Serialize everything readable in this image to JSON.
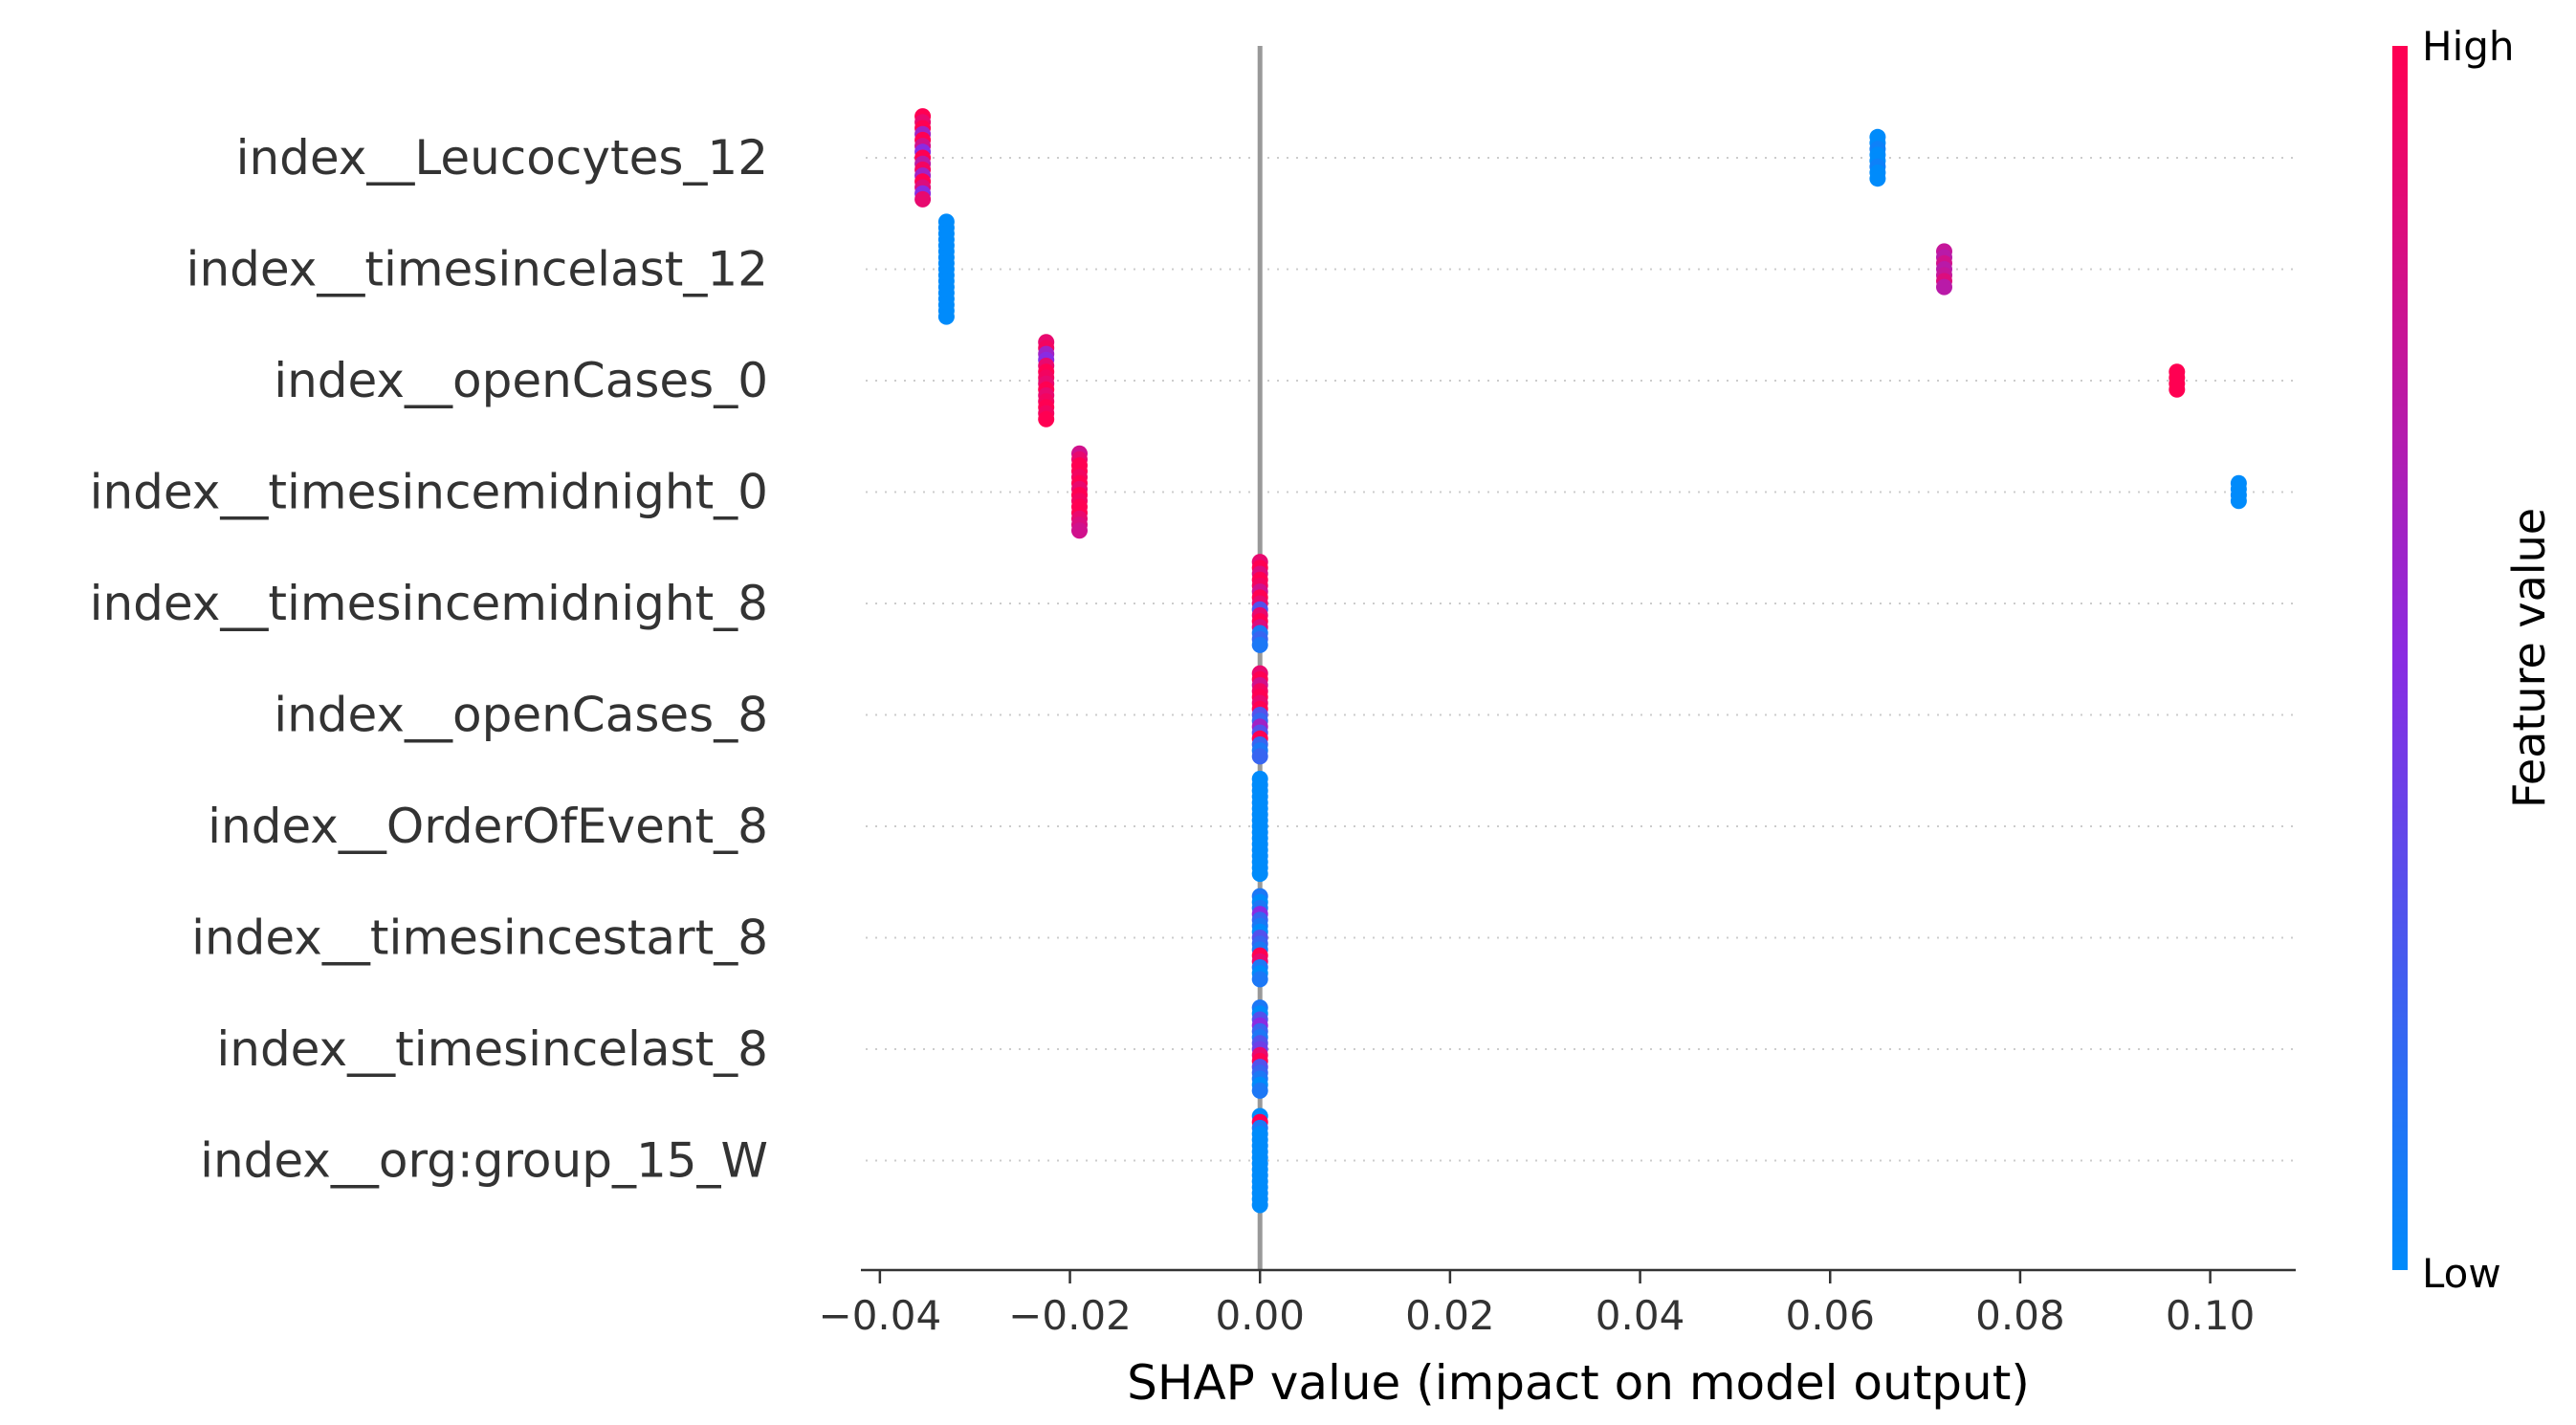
{
  "chart_data": {
    "type": "scatter",
    "subtype": "shap_beeswarm",
    "xlabel": "SHAP value (impact on model output)",
    "xlim": [
      -0.042,
      0.109
    ],
    "xticks": [
      -0.04,
      -0.02,
      0.0,
      0.02,
      0.04,
      0.06,
      0.08,
      0.1
    ],
    "xtick_labels": [
      "−0.04",
      "−0.02",
      "0.00",
      "0.02",
      "0.04",
      "0.06",
      "0.08",
      "0.10"
    ],
    "colorbar": {
      "title": "Feature value",
      "high_label": "High",
      "low_label": "Low",
      "low_color": "#008bfb",
      "mid_color": "#8a2be2",
      "high_color": "#ff0052"
    },
    "zero_line_color": "#999999",
    "features": [
      {
        "name": "index__Leucocytes_12",
        "clusters": [
          {
            "x": -0.0355,
            "color_values": [
              1,
              0.9,
              1,
              0.6,
              1,
              0.8,
              0.5,
              1,
              0.7,
              0.95,
              0.6,
              1,
              0.85,
              0.5,
              0.9
            ]
          },
          {
            "x": 0.065,
            "color_values": [
              0,
              0,
              0.05,
              0,
              0,
              0.05,
              0,
              0
            ]
          }
        ]
      },
      {
        "name": "index__timesincelast_12",
        "clusters": [
          {
            "x": -0.033,
            "color_values": [
              0,
              0,
              0,
              0,
              0,
              0,
              0,
              0,
              0,
              0,
              0,
              0,
              0,
              0,
              0,
              0,
              0
            ]
          },
          {
            "x": 0.072,
            "color_values": [
              0.75,
              0.7,
              0.8,
              0.7,
              0.75,
              0.85,
              0.7
            ]
          }
        ]
      },
      {
        "name": "index__openCases_0",
        "clusters": [
          {
            "x": -0.0225,
            "color_values": [
              0.9,
              0.95,
              0.6,
              0.5,
              0.9,
              1,
              0.95,
              0.9,
              1,
              0.9,
              0.95,
              1,
              0.95,
              1
            ]
          },
          {
            "x": 0.0965,
            "color_values": [
              1,
              1,
              1,
              1
            ]
          }
        ]
      },
      {
        "name": "index__timesincemidnight_0",
        "clusters": [
          {
            "x": -0.019,
            "color_values": [
              0.8,
              0.9,
              1,
              1,
              0.95,
              1,
              0.9,
              1,
              0.95,
              1,
              1,
              0.9,
              0.85,
              0.8
            ]
          },
          {
            "x": 0.103,
            "color_values": [
              0,
              0,
              0,
              0
            ]
          }
        ]
      },
      {
        "name": "index__timesincemidnight_8",
        "clusters": [
          {
            "x": 0.0,
            "color_values": [
              0.9,
              1,
              0.85,
              1,
              0.95,
              0.8,
              1,
              0.9,
              0.3,
              0.9,
              1,
              0.85,
              0.1,
              0.2,
              0.1
            ]
          }
        ]
      },
      {
        "name": "index__openCases_8",
        "clusters": [
          {
            "x": 0.0,
            "color_values": [
              0.9,
              1,
              0.8,
              0.95,
              1,
              0.9,
              1,
              0.3,
              0.2,
              0.6,
              0.3,
              1,
              0.2,
              0.1,
              0.2
            ]
          }
        ]
      },
      {
        "name": "index__OrderOfEvent_8",
        "clusters": [
          {
            "x": 0.0,
            "color_values": [
              0,
              0,
              0,
              0,
              0,
              0,
              0,
              0,
              0,
              0,
              0,
              0,
              0,
              0,
              0,
              0,
              0
            ]
          }
        ]
      },
      {
        "name": "index__timesincestart_8",
        "clusters": [
          {
            "x": 0.0,
            "color_values": [
              0.1,
              0,
              0.1,
              0.5,
              0.2,
              0.1,
              0,
              0.3,
              0.2,
              0.1,
              1,
              0.9,
              0.1,
              0,
              0.1
            ]
          }
        ]
      },
      {
        "name": "index__timesincelast_8",
        "clusters": [
          {
            "x": 0.0,
            "color_values": [
              0.1,
              0,
              0.3,
              0.5,
              0.2,
              0.1,
              0.3,
              0.4,
              0.9,
              1,
              0.3,
              0.2,
              0.1,
              0,
              0.1
            ]
          }
        ]
      },
      {
        "name": "index__org:group_15_W",
        "clusters": [
          {
            "x": 0.0,
            "color_values": [
              0,
              1,
              0.1,
              0,
              0,
              0,
              0,
              0,
              0,
              0,
              0,
              0,
              0,
              0,
              0,
              0
            ]
          }
        ]
      }
    ]
  }
}
